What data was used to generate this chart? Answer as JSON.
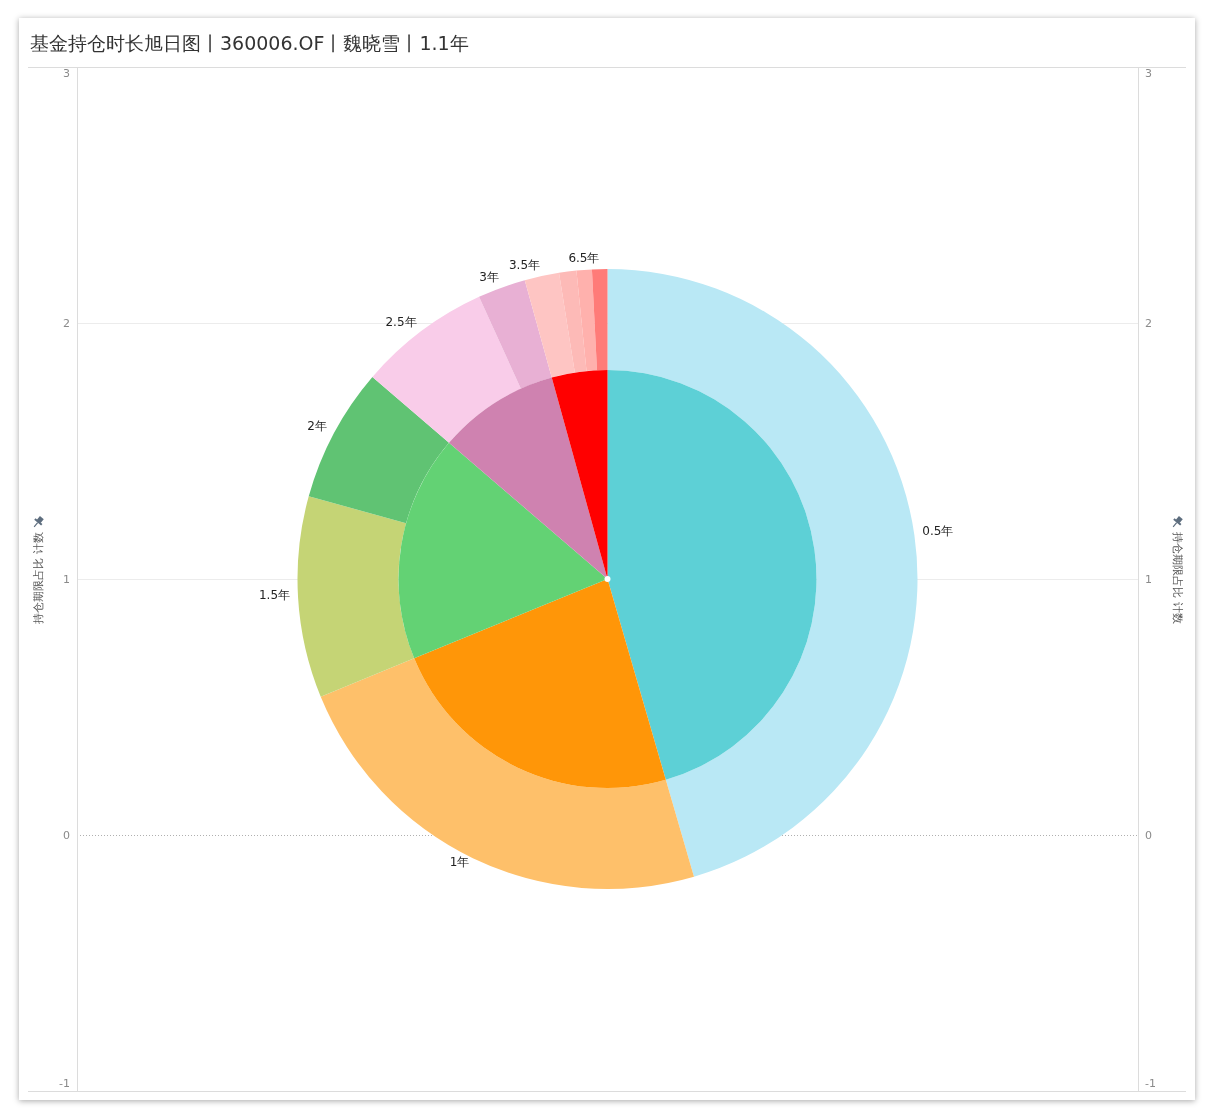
{
  "chart_data": [
    {
      "type": "scatter",
      "title": "基金持仓时长旭日图丨360006.OF丨魏晓雪丨1.1年",
      "categories": [
        null
      ],
      "values": [
        1
      ],
      "color": "#ffffff",
      "marker": "circle",
      "ylabel": "持仓期限占比 计数",
      "y2label": "持仓期限占比 计数",
      "ylim": [
        -1,
        3
      ],
      "yticks": [
        -1,
        0,
        1,
        2,
        3
      ],
      "y2lim": [
        -1,
        3
      ],
      "y2ticks": [
        -1,
        0,
        1,
        2,
        3
      ],
      "grid": "y",
      "ref_lines": [
        {
          "axis": "y",
          "value": 0,
          "color": "#b0b0b0",
          "line_style": "dotted"
        }
      ]
    },
    {
      "type": "donut",
      "categories": [
        "0.5年",
        "1年",
        "1.5年",
        "2年",
        "2.5年",
        "3年",
        "3.5年",
        null,
        null,
        "6.5年"
      ],
      "values": [
        45.5,
        23.3,
        10.5,
        7.0,
        6.9,
        2.5,
        1.8,
        0.9,
        0.8,
        0.8
      ],
      "colors": [
        "#b9e8f5",
        "#fec06a",
        "#c5d475",
        "#60c373",
        "#f9cce9",
        "#e8b0d4",
        "#fec5c3",
        "#fdbab7",
        "#ffb1ad",
        "#ff7b78"
      ]
    },
    {
      "type": "pie",
      "categories": [
        null,
        null,
        null,
        null,
        null
      ],
      "values": [
        45.5,
        23.3,
        17.5,
        9.4,
        4.3
      ],
      "colors": [
        "#5dd0d6",
        "#ff9608",
        "#63d274",
        "#cf82b0",
        "#ff0000"
      ]
    }
  ]
}
